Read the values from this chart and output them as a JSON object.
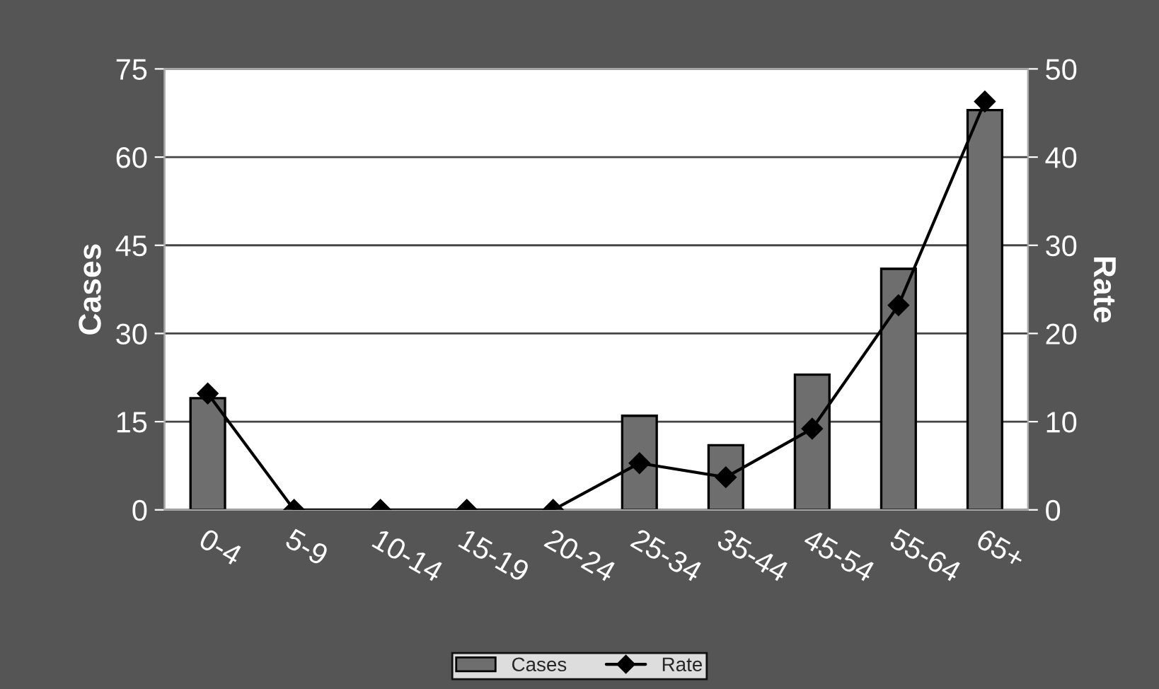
{
  "chart_data": {
    "type": "bar",
    "categories": [
      "0-4",
      "5-9",
      "10-14",
      "15-19",
      "20-24",
      "25-34",
      "35-44",
      "45-54",
      "55-64",
      "65+"
    ],
    "series": [
      {
        "name": "Cases",
        "color": "#6e6e6e",
        "values": [
          19,
          0,
          0,
          0,
          0,
          16,
          11,
          23,
          41,
          68
        ]
      },
      {
        "name": "Rate",
        "type": "line",
        "axis": "y2",
        "color": "#000000",
        "marker": "diamond",
        "values": [
          13.2,
          0,
          0,
          0,
          0,
          5.3,
          3.7,
          9.2,
          23.2,
          46.3
        ]
      }
    ],
    "ylabel": "Cases",
    "y2label": "Rate",
    "ylim": [
      0,
      75
    ],
    "yticks": [
      0,
      15,
      30,
      45,
      60,
      75
    ],
    "y2lim": [
      0,
      50
    ],
    "y2ticks": [
      0,
      10,
      20,
      30,
      40,
      50
    ],
    "grid": "y",
    "legend": "bottom"
  }
}
